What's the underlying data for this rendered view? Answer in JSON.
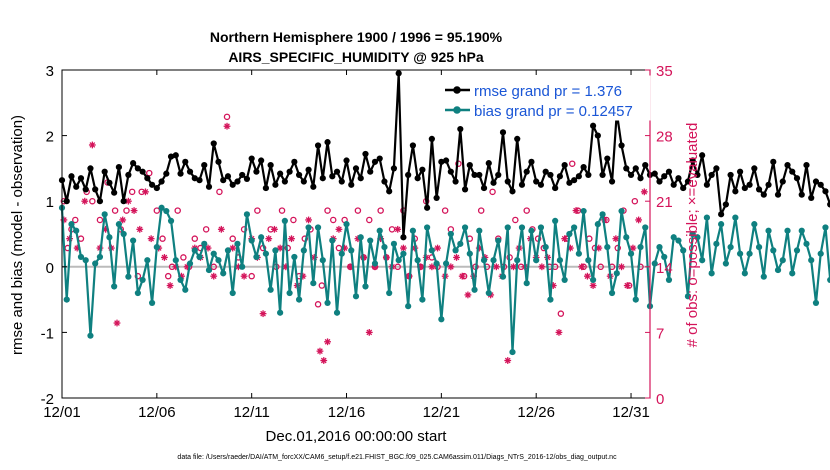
{
  "chart_data": {
    "type": "line",
    "title_line1": "Northern Hemisphere 1900 / 1996 = 95.190%",
    "title_line2": "AIRS_SPECIFIC_HUMIDITY @ 925 hPa",
    "xlabel": "Dec.01,2016 00:00:00 start",
    "ylabel_left": "rmse and bias (model - observation)",
    "ylabel_right": "# of obs: o=possible; ×=evaluated",
    "footnote": "data file: /Users/raeder/DAI/ATM_forcXX/CAM6_setup/f.e21.FHIST_BGC.f09_025.CAM6assim.011/Diags_NTrS_2016-12/obs_diag_output.nc",
    "x_ticks": [
      {
        "value": 1,
        "label": "12/01"
      },
      {
        "value": 6,
        "label": "12/06"
      },
      {
        "value": 11,
        "label": "12/11"
      },
      {
        "value": 16,
        "label": "12/16"
      },
      {
        "value": 21,
        "label": "12/21"
      },
      {
        "value": 26,
        "label": "12/26"
      },
      {
        "value": 31,
        "label": "12/31"
      }
    ],
    "xlim": [
      1,
      32
    ],
    "ylim_left": [
      -2,
      3
    ],
    "y_ticks_left": [
      -2,
      -1,
      0,
      1,
      2,
      3
    ],
    "ylim_right": [
      0,
      35
    ],
    "y_ticks_right": [
      0,
      7,
      14,
      21,
      28,
      35
    ],
    "colors": {
      "rmse": "#000000",
      "bias": "#0f8080",
      "obs": "#d4145a",
      "zero_line": "#bbbbbb",
      "legend_text": "#1a56d6"
    },
    "series": [
      {
        "name": "rmse grand pr = 1.376",
        "key": "rmse",
        "x0": 1,
        "dx": 0.25,
        "values": [
          1.32,
          1.0,
          1.38,
          1.22,
          1.35,
          1.18,
          1.5,
          1.18,
          1.0,
          1.45,
          1.28,
          1.13,
          1.52,
          1.0,
          1.4,
          1.58,
          1.5,
          1.45,
          1.35,
          1.25,
          1.2,
          1.3,
          1.42,
          1.68,
          1.7,
          1.42,
          1.6,
          1.45,
          1.35,
          1.32,
          1.55,
          1.22,
          1.88,
          1.6,
          1.32,
          1.38,
          1.25,
          1.3,
          1.4,
          1.34,
          1.65,
          1.45,
          1.62,
          1.2,
          1.55,
          1.25,
          1.42,
          1.3,
          1.45,
          1.6,
          1.4,
          1.3,
          1.48,
          1.22,
          1.85,
          1.35,
          1.9,
          1.38,
          1.45,
          1.3,
          1.62,
          1.25,
          1.5,
          1.35,
          1.72,
          1.45,
          1.6,
          1.65,
          1.3,
          1.15,
          1.5,
          2.95,
          0.45,
          1.4,
          1.85,
          1.35,
          1.48,
          0.9,
          1.95,
          1.05,
          1.6,
          1.62,
          1.45,
          1.3,
          2.1,
          1.18,
          1.55,
          1.4,
          1.4,
          1.2,
          1.58,
          1.28,
          1.4,
          2.05,
          1.3,
          1.15,
          1.95,
          1.25,
          1.45,
          1.6,
          1.3,
          1.25,
          1.45,
          1.4,
          1.2,
          1.38,
          1.55,
          1.28,
          1.32,
          1.38,
          1.52,
          1.4,
          2.15,
          2.0,
          1.4,
          1.65,
          1.3,
          2.35,
          1.85,
          1.5,
          1.4,
          1.5,
          1.35,
          1.55,
          1.4,
          1.42,
          1.3,
          1.38,
          1.45,
          1.25,
          1.35,
          1.2,
          1.3,
          1.62,
          1.4,
          1.7,
          1.25,
          1.4,
          1.5,
          0.8,
          0.95,
          1.4,
          1.15,
          1.45,
          1.2,
          1.25,
          1.5,
          1.18,
          1.1,
          1.25,
          1.6,
          1.1,
          1.3,
          1.55,
          1.45,
          1.35,
          1.1,
          1.55,
          1.05,
          1.3,
          1.25,
          1.15,
          0.95,
          1.2,
          1.32,
          1.52,
          1.1,
          1.4,
          1.2,
          1.05
        ]
      },
      {
        "name": "bias grand pr = 0.12457",
        "key": "bias",
        "x0": 1,
        "dx": 0.25,
        "values": [
          0.9,
          -0.5,
          0.65,
          0.55,
          0.15,
          0.1,
          -1.05,
          0.05,
          0.15,
          0.8,
          0.45,
          -0.3,
          0.65,
          0.5,
          -0.15,
          0.4,
          -0.4,
          -0.2,
          0.1,
          -0.55,
          0.3,
          0.9,
          0.85,
          0.7,
          0.1,
          -0.2,
          -0.35,
          0.05,
          0.25,
          0.15,
          0.35,
          -0.05,
          0.2,
          0.1,
          -0.1,
          0.25,
          -0.4,
          0.35,
          0.0,
          0.8,
          0.4,
          0.15,
          0.45,
          0.2,
          -0.35,
          0.25,
          -0.7,
          0.7,
          -0.4,
          0.15,
          -0.5,
          0.25,
          0.6,
          -0.25,
          0.6,
          0.1,
          -0.55,
          0.4,
          -0.7,
          0.2,
          0.65,
          0.25,
          -0.45,
          0.45,
          -0.3,
          0.4,
          0.05,
          0.55,
          0.3,
          -0.4,
          0.35,
          0.1,
          0.2,
          -0.6,
          0.55,
          0.1,
          -0.5,
          0.6,
          0.25,
          0.05,
          -0.8,
          0.05,
          0.5,
          0.25,
          0.35,
          0.6,
          0.2,
          -0.35,
          0.55,
          0.1,
          -0.4,
          0.1,
          0.4,
          -0.15,
          0.6,
          -1.3,
          0.1,
          0.6,
          -0.25,
          0.55,
          0.1,
          0.6,
          0.3,
          -0.5,
          0.7,
          0.1,
          -0.2,
          0.5,
          0.6,
          0.2,
          0.85,
          0.1,
          -0.2,
          0.65,
          0.8,
          0.3,
          -0.4,
          -0.1,
          0.85,
          0.45,
          0.2,
          -0.5,
          0.3,
          0.6,
          -0.6,
          0.05,
          0.3,
          0.15,
          -0.2,
          0.45,
          0.4,
          0.25,
          -0.45,
          0.5,
          0.45,
          0.1,
          0.75,
          -0.1,
          0.35,
          0.65,
          0.05,
          0.3,
          0.75,
          0.2,
          -0.1,
          0.2,
          0.65,
          0.3,
          -0.15,
          0.55,
          0.25,
          -0.05,
          0.1,
          0.55,
          -0.1,
          0.25,
          0.55,
          0.35,
          0.1,
          -0.55,
          0.2,
          0.6,
          -0.2,
          0.05,
          -0.55,
          0.25,
          0.1,
          -0.5,
          0.25
        ]
      }
    ],
    "obs_possible": [
      [
        1.1,
        21
      ],
      [
        1.3,
        16
      ],
      [
        1.5,
        18
      ],
      [
        1.7,
        19
      ],
      [
        2.0,
        17
      ],
      [
        2.3,
        22
      ],
      [
        2.6,
        21
      ],
      [
        3.0,
        19
      ],
      [
        3.4,
        23
      ],
      [
        3.8,
        20
      ],
      [
        4.1,
        18
      ],
      [
        4.4,
        20
      ],
      [
        4.7,
        22
      ],
      [
        5.0,
        13
      ],
      [
        5.2,
        22
      ],
      [
        5.6,
        24
      ],
      [
        6.0,
        20
      ],
      [
        6.3,
        17
      ],
      [
        6.6,
        13
      ],
      [
        6.8,
        14
      ],
      [
        7.1,
        20
      ],
      [
        7.4,
        15
      ],
      [
        7.7,
        14
      ],
      [
        8.0,
        17
      ],
      [
        8.3,
        16
      ],
      [
        8.6,
        18
      ],
      [
        9.0,
        14
      ],
      [
        9.3,
        22
      ],
      [
        9.7,
        30
      ],
      [
        10.0,
        17
      ],
      [
        10.3,
        15
      ],
      [
        10.6,
        18
      ],
      [
        11.0,
        13
      ],
      [
        11.3,
        20
      ],
      [
        11.6,
        16
      ],
      [
        12.0,
        18
      ],
      [
        12.3,
        14
      ],
      [
        12.6,
        20
      ],
      [
        12.9,
        16
      ],
      [
        13.2,
        19
      ],
      [
        13.5,
        13
      ],
      [
        13.8,
        17
      ],
      [
        14.1,
        18
      ],
      [
        14.5,
        10
      ],
      [
        14.7,
        12
      ],
      [
        15.0,
        20
      ],
      [
        15.3,
        19
      ],
      [
        15.6,
        16
      ],
      [
        15.9,
        19
      ],
      [
        16.2,
        14
      ],
      [
        16.6,
        20
      ],
      [
        16.9,
        15
      ],
      [
        17.2,
        19
      ],
      [
        17.5,
        14
      ],
      [
        17.8,
        20
      ],
      [
        18.1,
        15
      ],
      [
        18.4,
        18
      ],
      [
        18.7,
        14
      ],
      [
        19.0,
        20
      ],
      [
        19.3,
        13
      ],
      [
        19.6,
        17
      ],
      [
        19.9,
        14
      ],
      [
        20.2,
        21
      ],
      [
        20.5,
        15
      ],
      [
        20.8,
        14
      ],
      [
        21.2,
        20
      ],
      [
        21.5,
        18
      ],
      [
        21.9,
        25
      ],
      [
        22.2,
        13
      ],
      [
        22.5,
        17
      ],
      [
        22.8,
        14
      ],
      [
        23.1,
        20
      ],
      [
        23.4,
        14
      ],
      [
        23.7,
        22
      ],
      [
        24.0,
        17
      ],
      [
        24.3,
        14
      ],
      [
        24.6,
        15
      ],
      [
        24.9,
        19
      ],
      [
        25.2,
        14
      ],
      [
        25.5,
        20
      ],
      [
        25.8,
        18
      ],
      [
        26.1,
        17
      ],
      [
        26.4,
        16
      ],
      [
        26.7,
        14
      ],
      [
        27.0,
        14
      ],
      [
        27.3,
        9
      ],
      [
        27.6,
        17
      ],
      [
        27.9,
        25
      ],
      [
        28.2,
        20
      ],
      [
        28.5,
        14
      ],
      [
        28.8,
        17
      ],
      [
        29.1,
        16
      ],
      [
        29.4,
        14
      ],
      [
        29.7,
        19
      ],
      [
        30.0,
        14
      ],
      [
        30.3,
        16
      ],
      [
        30.6,
        20
      ],
      [
        30.9,
        12
      ],
      [
        31.2,
        21
      ],
      [
        31.5,
        14
      ]
    ],
    "obs_evaluated": [
      [
        1.1,
        19
      ],
      [
        1.4,
        17
      ],
      [
        1.8,
        16
      ],
      [
        2.2,
        21
      ],
      [
        2.6,
        27
      ],
      [
        3.0,
        16
      ],
      [
        3.3,
        18
      ],
      [
        3.6,
        16
      ],
      [
        3.9,
        8
      ],
      [
        4.2,
        19
      ],
      [
        4.5,
        21
      ],
      [
        4.8,
        20
      ],
      [
        5.1,
        18
      ],
      [
        5.4,
        22
      ],
      [
        5.7,
        17
      ],
      [
        6.1,
        16
      ],
      [
        6.4,
        15
      ],
      [
        6.7,
        12
      ],
      [
        7.0,
        14
      ],
      [
        7.3,
        13
      ],
      [
        7.6,
        14
      ],
      [
        8.0,
        16
      ],
      [
        8.3,
        15
      ],
      [
        8.7,
        16
      ],
      [
        9.0,
        13
      ],
      [
        9.4,
        18
      ],
      [
        9.7,
        29
      ],
      [
        10.0,
        16
      ],
      [
        10.3,
        14
      ],
      [
        10.6,
        13
      ],
      [
        11.0,
        17
      ],
      [
        11.3,
        15
      ],
      [
        11.6,
        9
      ],
      [
        11.9,
        17
      ],
      [
        12.2,
        18
      ],
      [
        12.5,
        16
      ],
      [
        12.8,
        14
      ],
      [
        13.1,
        17
      ],
      [
        13.4,
        12
      ],
      [
        13.7,
        13
      ],
      [
        14.0,
        19
      ],
      [
        14.3,
        15
      ],
      [
        14.6,
        5
      ],
      [
        14.8,
        4
      ],
      [
        15.0,
        6
      ],
      [
        15.3,
        17
      ],
      [
        15.6,
        18
      ],
      [
        15.9,
        16
      ],
      [
        16.2,
        14
      ],
      [
        16.6,
        17
      ],
      [
        16.9,
        15
      ],
      [
        17.2,
        7
      ],
      [
        17.5,
        14
      ],
      [
        17.8,
        17
      ],
      [
        18.1,
        15
      ],
      [
        18.4,
        14
      ],
      [
        18.7,
        18
      ],
      [
        19.0,
        16
      ],
      [
        19.3,
        13
      ],
      [
        19.6,
        16
      ],
      [
        19.9,
        14
      ],
      [
        20.2,
        15
      ],
      [
        20.5,
        14
      ],
      [
        20.8,
        16
      ],
      [
        21.2,
        13
      ],
      [
        21.5,
        14
      ],
      [
        21.8,
        15
      ],
      [
        22.1,
        13
      ],
      [
        22.4,
        11
      ],
      [
        22.7,
        13
      ],
      [
        23.0,
        16
      ],
      [
        23.3,
        15
      ],
      [
        23.6,
        11
      ],
      [
        23.9,
        14
      ],
      [
        24.2,
        13
      ],
      [
        24.5,
        4
      ],
      [
        24.8,
        14
      ],
      [
        25.1,
        16
      ],
      [
        25.4,
        14
      ],
      [
        25.7,
        17
      ],
      [
        26.0,
        15
      ],
      [
        26.3,
        14
      ],
      [
        26.6,
        15
      ],
      [
        26.9,
        12
      ],
      [
        27.2,
        7
      ],
      [
        27.5,
        17
      ],
      [
        27.8,
        16
      ],
      [
        28.1,
        20
      ],
      [
        28.4,
        14
      ],
      [
        28.7,
        13
      ],
      [
        29.0,
        12
      ],
      [
        29.3,
        16
      ],
      [
        29.6,
        19
      ],
      [
        29.9,
        13
      ],
      [
        30.2,
        17
      ],
      [
        30.5,
        14
      ],
      [
        30.8,
        12
      ],
      [
        31.1,
        16
      ],
      [
        31.4,
        19
      ],
      [
        31.7,
        22
      ]
    ]
  }
}
